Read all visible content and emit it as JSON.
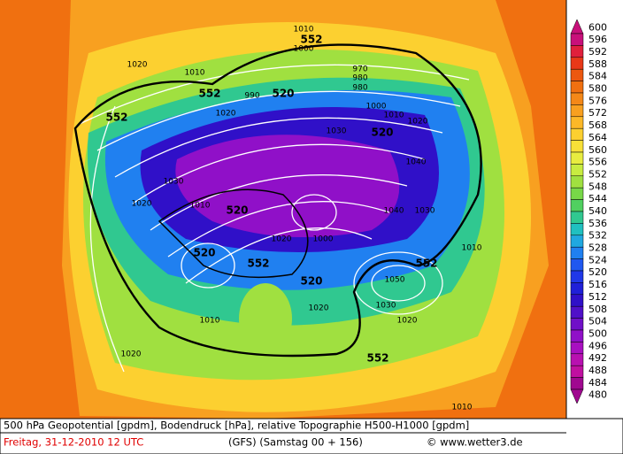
{
  "map": {
    "contour_labels": [
      "552",
      "552",
      "552",
      "552",
      "552",
      "552",
      "520",
      "520",
      "520",
      "520",
      "520",
      "1010",
      "1020",
      "1010",
      "1000",
      "990",
      "1020",
      "1030",
      "1040",
      "1030",
      "1020",
      "1010",
      "1000",
      "1020",
      "1030",
      "1040",
      "1050",
      "1030",
      "1020",
      "1010",
      "1020",
      "1020",
      "1010",
      "1010",
      "970",
      "980",
      "980",
      "1000",
      "1010",
      "1020"
    ]
  },
  "colorbar": {
    "labels": [
      600,
      596,
      592,
      588,
      584,
      580,
      576,
      572,
      568,
      564,
      560,
      556,
      552,
      548,
      544,
      540,
      536,
      532,
      528,
      524,
      520,
      516,
      512,
      508,
      504,
      500,
      496,
      492,
      488,
      484,
      480
    ],
    "colors": [
      "#c8107a",
      "#e0203c",
      "#e83818",
      "#ec5810",
      "#f07010",
      "#f48818",
      "#f8a020",
      "#fcb828",
      "#fcd030",
      "#f8e038",
      "#e8ec40",
      "#c8ec40",
      "#a0e040",
      "#78d848",
      "#50d060",
      "#30c890",
      "#20c0c0",
      "#20a8e0",
      "#2080f0",
      "#2058f0",
      "#2038e8",
      "#2020d8",
      "#3010c8",
      "#5010c8",
      "#7010c8",
      "#9010c8",
      "#a810c0",
      "#b810b0",
      "#c010a0",
      "#a00890"
    ]
  },
  "footer": {
    "description": "500 hPa Geopotential [gpdm], Bodendruck [hPa], relative Topographie H500-H1000 [gpdm]",
    "date": "Freitag, 31-12-2010   12 UTC",
    "model": "(GFS)   (Samstag 00 + 156)",
    "copyright": "© www.wetter3.de"
  }
}
